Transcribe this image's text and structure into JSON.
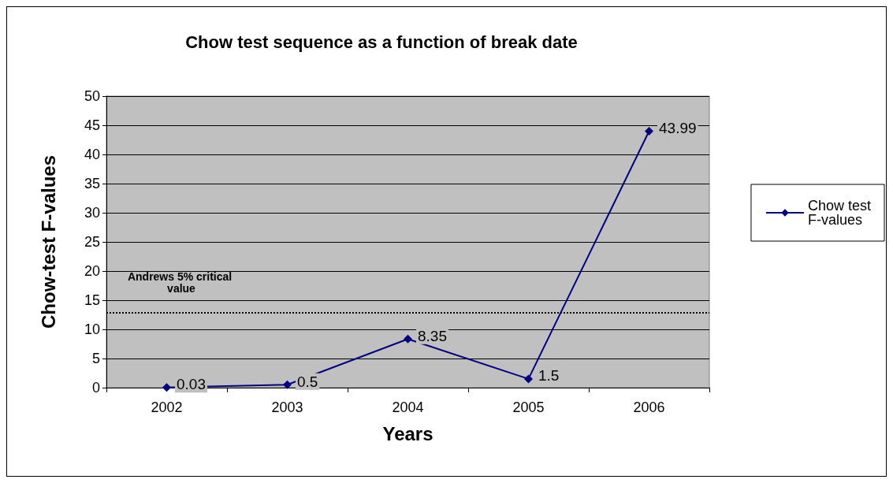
{
  "chart_data": {
    "type": "line",
    "title": "Chow test sequence as a function of break date",
    "xlabel": "Years",
    "ylabel": "Chow-test F-values",
    "categories": [
      "2002",
      "2003",
      "2004",
      "2005",
      "2006"
    ],
    "series": [
      {
        "name": "Chow test F-values",
        "color": "#000080",
        "values": [
          0.03,
          0.5,
          8.35,
          1.5,
          43.99
        ]
      }
    ],
    "ylim": [
      0,
      50
    ],
    "yticks": [
      0,
      5,
      10,
      15,
      20,
      25,
      30,
      35,
      40,
      45,
      50
    ],
    "grid": "y",
    "legend": "right",
    "marker": "diamond",
    "line_style": "solid",
    "data_labels": true,
    "ref_lines": [
      {
        "axis": "y",
        "value": 12.9,
        "label": "Andrews 5% critical value",
        "color": "#000000",
        "line_style": "dotted"
      }
    ]
  }
}
